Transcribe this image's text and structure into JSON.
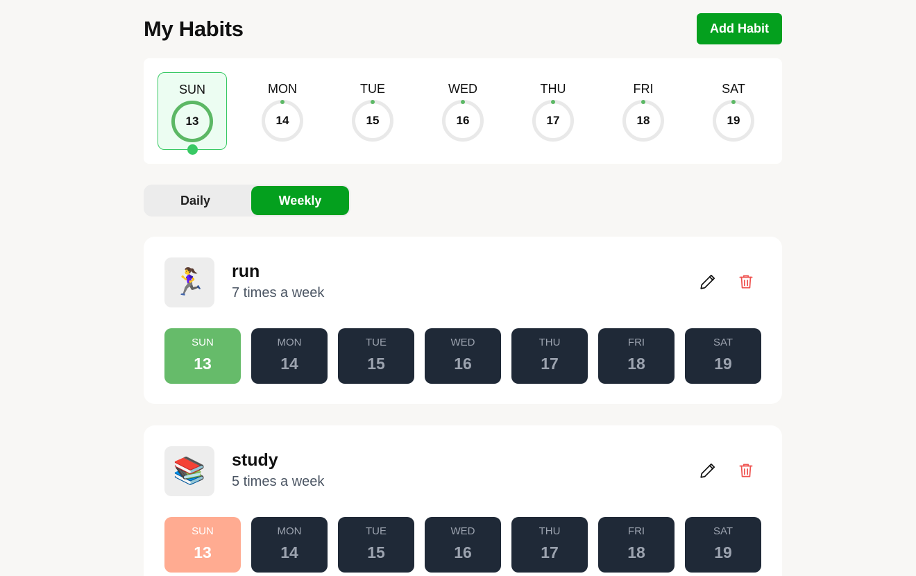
{
  "header": {
    "title": "My Habits",
    "add_label": "Add Habit"
  },
  "week": {
    "days": [
      {
        "name": "SUN",
        "date": "13"
      },
      {
        "name": "MON",
        "date": "14"
      },
      {
        "name": "TUE",
        "date": "15"
      },
      {
        "name": "WED",
        "date": "16"
      },
      {
        "name": "THU",
        "date": "17"
      },
      {
        "name": "FRI",
        "date": "18"
      },
      {
        "name": "SAT",
        "date": "19"
      }
    ],
    "selected": "SUN"
  },
  "toggle": {
    "daily": "Daily",
    "weekly": "Weekly",
    "active": "Weekly"
  },
  "colors": {
    "accent": "#04a01e",
    "ring": "#5cb865",
    "tile_dark": "#1f2937",
    "run_done": "#66bb6a",
    "study_done": "#ffab91"
  },
  "habits": [
    {
      "name": "run",
      "frequency": "7 times a week",
      "emoji": "🏃‍♀️",
      "icon": "runner-icon",
      "days": [
        {
          "name": "SUN",
          "date": "13",
          "done": true
        },
        {
          "name": "MON",
          "date": "14",
          "done": false
        },
        {
          "name": "TUE",
          "date": "15",
          "done": false
        },
        {
          "name": "WED",
          "date": "16",
          "done": false
        },
        {
          "name": "THU",
          "date": "17",
          "done": false
        },
        {
          "name": "FRI",
          "date": "18",
          "done": false
        },
        {
          "name": "SAT",
          "date": "19",
          "done": false
        }
      ]
    },
    {
      "name": "study",
      "frequency": "5 times a week",
      "emoji": "📚",
      "icon": "books-icon",
      "days": [
        {
          "name": "SUN",
          "date": "13",
          "done": true
        },
        {
          "name": "MON",
          "date": "14",
          "done": false
        },
        {
          "name": "TUE",
          "date": "15",
          "done": false
        },
        {
          "name": "WED",
          "date": "16",
          "done": false
        },
        {
          "name": "THU",
          "date": "17",
          "done": false
        },
        {
          "name": "FRI",
          "date": "18",
          "done": false
        },
        {
          "name": "SAT",
          "date": "19",
          "done": false
        }
      ]
    }
  ]
}
